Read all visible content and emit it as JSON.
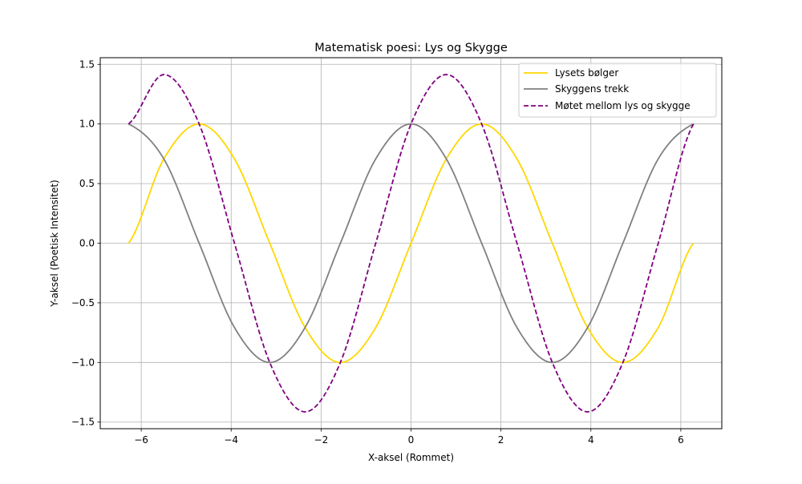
{
  "chart_data": {
    "type": "line",
    "title": "Matematisk poesi: Lys og Skygge",
    "xlabel": "X-aksel (Rommet)",
    "ylabel": "Y-aksel (Poetisk Intensitet)",
    "xlim": [
      -6.9115,
      6.9115
    ],
    "ylim": [
      -1.5556,
      1.5556
    ],
    "grid": true,
    "legend_position": "top-right",
    "xticks": [
      -6,
      -4,
      -2,
      0,
      2,
      4,
      6
    ],
    "xtick_labels": [
      "−6",
      "−4",
      "−2",
      "0",
      "2",
      "4",
      "6"
    ],
    "yticks": [
      -1.5,
      -1.0,
      -0.5,
      0.0,
      0.5,
      1.0,
      1.5
    ],
    "ytick_labels": [
      "−1.5",
      "−1.0",
      "−0.5",
      "0.0",
      "0.5",
      "1.0",
      "1.5"
    ],
    "x": [
      -6.283,
      -5.498,
      -4.712,
      -3.927,
      -3.142,
      -2.356,
      -1.571,
      -0.785,
      0.0,
      0.785,
      1.571,
      2.356,
      3.142,
      3.927,
      4.712,
      5.498,
      6.283
    ],
    "series": [
      {
        "name": "Lysets bølger",
        "color": "#ffd700",
        "style": "solid",
        "values": [
          0.0,
          0.707,
          1.0,
          0.707,
          0.0,
          -0.707,
          -1.0,
          -0.707,
          0.0,
          0.707,
          1.0,
          0.707,
          0.0,
          -0.707,
          -1.0,
          -0.707,
          0.0
        ]
      },
      {
        "name": "Skyggens trekk",
        "color": "#808080",
        "style": "solid",
        "values": [
          1.0,
          0.707,
          0.0,
          -0.707,
          -1.0,
          -0.707,
          0.0,
          0.707,
          1.0,
          0.707,
          0.0,
          -0.707,
          -1.0,
          -0.707,
          0.0,
          0.707,
          1.0
        ]
      },
      {
        "name": "Møtet mellom lys og skygge",
        "color": "#800080",
        "style": "dashed",
        "values": [
          1.0,
          1.414,
          1.0,
          0.0,
          -1.0,
          -1.414,
          -1.0,
          0.0,
          1.0,
          1.414,
          1.0,
          0.0,
          -1.0,
          -1.414,
          -1.0,
          0.0,
          1.0
        ]
      }
    ]
  }
}
